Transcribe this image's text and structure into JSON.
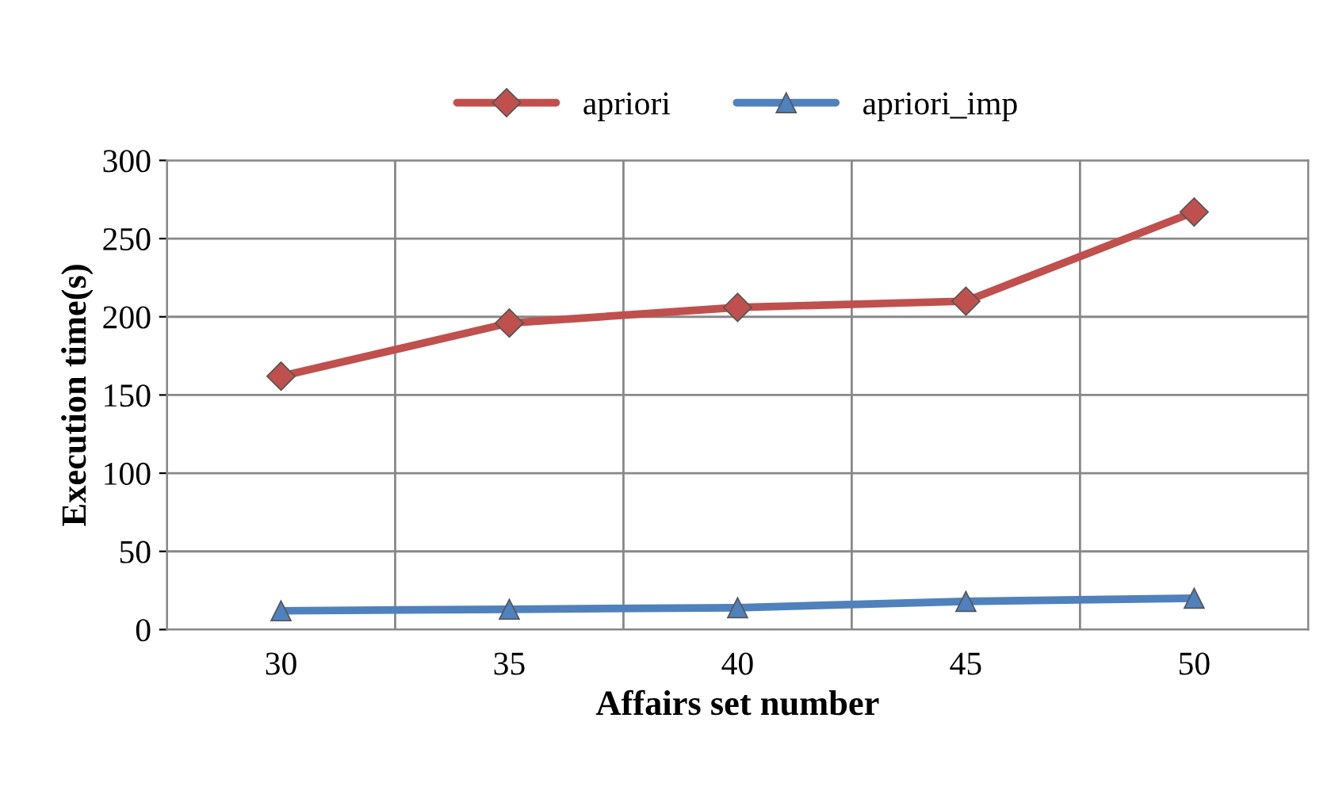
{
  "chart_data": {
    "type": "line",
    "xlabel": "Affairs set number",
    "ylabel": "Execution time(s)",
    "categories": [
      "30",
      "35",
      "40",
      "45",
      "50"
    ],
    "series": [
      {
        "name": "apriori",
        "color": "#c0504d",
        "marker": "diamond",
        "values": [
          162,
          196,
          206,
          210,
          267
        ]
      },
      {
        "name": "apriori_imp",
        "color": "#4f81bd",
        "marker": "triangle",
        "values": [
          12,
          13,
          14,
          18,
          20
        ]
      }
    ],
    "ylim": [
      0,
      300
    ],
    "yticks": [
      0,
      50,
      100,
      150,
      200,
      250,
      300
    ],
    "grid": true,
    "legend": "top",
    "line_style": "solid"
  }
}
